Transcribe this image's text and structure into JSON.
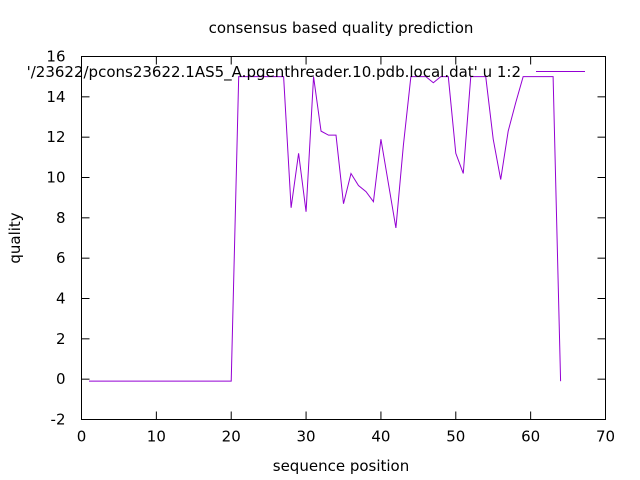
{
  "chart_data": {
    "type": "line",
    "title": "consensus based quality prediction",
    "xlabel": "sequence position",
    "ylabel": "quality",
    "xlim": [
      0,
      70
    ],
    "ylim": [
      -2,
      16
    ],
    "xticks": [
      0,
      10,
      20,
      30,
      40,
      50,
      60,
      70
    ],
    "yticks": [
      -2,
      0,
      2,
      4,
      6,
      8,
      10,
      12,
      14,
      16
    ],
    "xtick_labels": [
      "0",
      "10",
      "20",
      "30",
      "40",
      "50",
      "60",
      "70"
    ],
    "ytick_labels": [
      "-2",
      "0",
      "2",
      "4",
      "6",
      "8",
      "10",
      "12",
      "14",
      "16"
    ],
    "grid": false,
    "legend_position": "top-right",
    "line_color": "#9400d3",
    "series": [
      {
        "name": "'/23622/pcons23622.1AS5_A.pgenthreader.10.pdb.local.dat' u 1:2",
        "x": [
          1,
          2,
          3,
          4,
          5,
          6,
          7,
          8,
          9,
          10,
          11,
          12,
          13,
          14,
          15,
          16,
          17,
          18,
          19,
          20,
          21,
          22,
          23,
          24,
          25,
          26,
          27,
          28,
          29,
          30,
          31,
          32,
          33,
          34,
          35,
          36,
          37,
          38,
          39,
          40,
          41,
          42,
          43,
          44,
          45,
          46,
          47,
          48,
          49,
          50,
          51,
          52,
          53,
          54,
          55,
          56,
          57,
          58,
          59,
          60,
          61,
          62,
          63,
          64
        ],
        "values": [
          -0.1,
          -0.1,
          -0.1,
          -0.1,
          -0.1,
          -0.1,
          -0.1,
          -0.1,
          -0.1,
          -0.1,
          -0.1,
          -0.1,
          -0.1,
          -0.1,
          -0.1,
          -0.1,
          -0.1,
          -0.1,
          -0.1,
          -0.1,
          15,
          15,
          15,
          15,
          15,
          15,
          15,
          8.5,
          11.2,
          8.3,
          15,
          12.3,
          12.1,
          12.1,
          8.7,
          10.2,
          9.6,
          9.3,
          8.8,
          11.9,
          9.7,
          7.5,
          11.6,
          15,
          15,
          15,
          14.7,
          15,
          15,
          11.2,
          10.2,
          15,
          15,
          15,
          11.9,
          9.9,
          12.3,
          13.7,
          15,
          15,
          15,
          15,
          15,
          -0.1
        ]
      }
    ]
  }
}
